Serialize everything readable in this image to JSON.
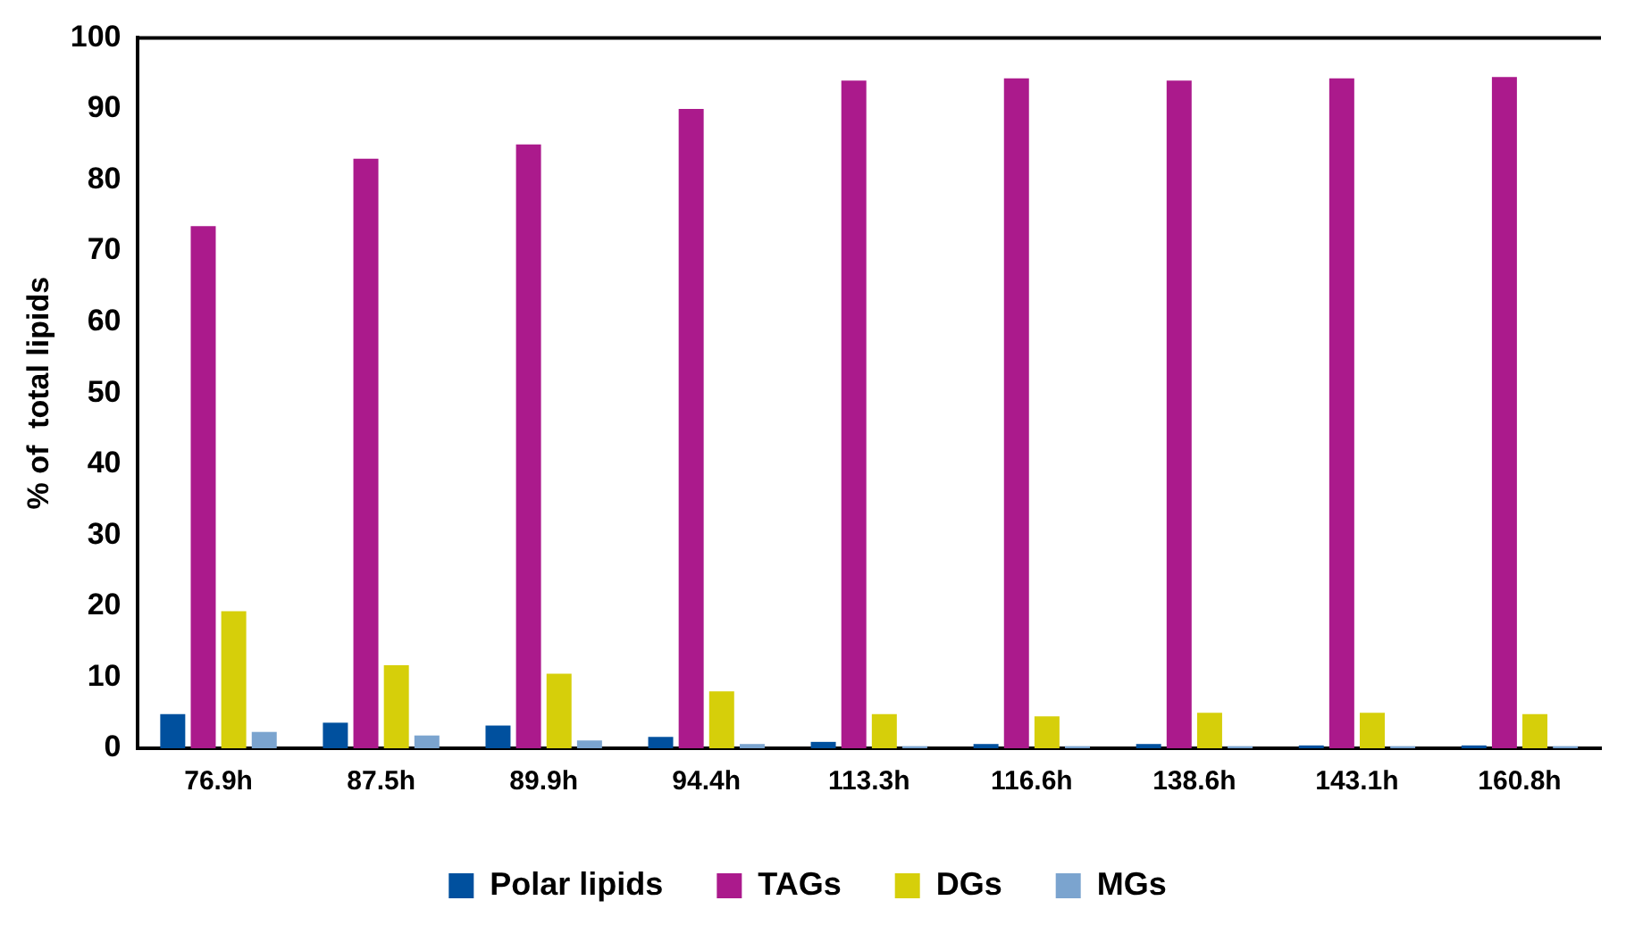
{
  "chart_data": {
    "type": "bar",
    "ylabel": "% of  total lipids",
    "categories": [
      "76.9h",
      "87.5h",
      "89.9h",
      "94.4h",
      "113.3h",
      "116.6h",
      "138.6h",
      "143.1h",
      "160.8h"
    ],
    "series": [
      {
        "name": "Polar lipids",
        "color": "#00509e",
        "values": [
          4.8,
          3.6,
          3.2,
          1.6,
          0.9,
          0.6,
          0.6,
          0.4,
          0.4
        ]
      },
      {
        "name": "TAGs",
        "color": "#ab1a8c",
        "values": [
          73.5,
          83,
          85,
          90,
          94,
          94.3,
          94,
          94.3,
          94.5
        ]
      },
      {
        "name": "DGs",
        "color": "#d6cf0a",
        "values": [
          19.3,
          11.7,
          10.5,
          8,
          4.8,
          4.5,
          5,
          5,
          4.8
        ]
      },
      {
        "name": "MGs",
        "color": "#7ba4cf",
        "values": [
          2.3,
          1.8,
          1.1,
          0.6,
          0.3,
          0.3,
          0.3,
          0.3,
          0.3
        ]
      }
    ],
    "ylim": [
      0,
      100
    ],
    "yticks": [
      0,
      10,
      20,
      30,
      40,
      50,
      60,
      70,
      80,
      90,
      100
    ],
    "grid": false,
    "legend": "bottom"
  }
}
